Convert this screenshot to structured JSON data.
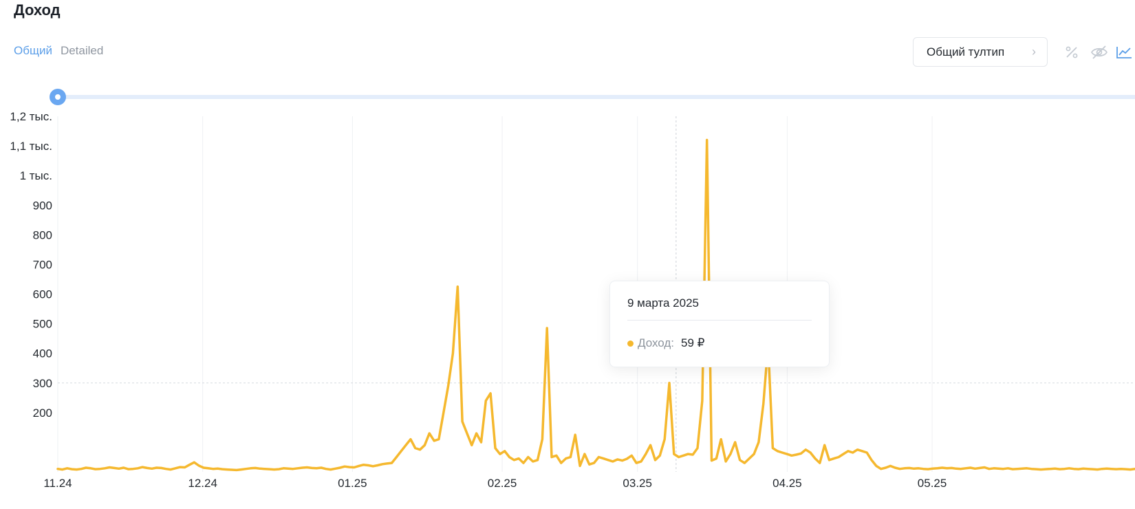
{
  "page": {
    "title": "Доход"
  },
  "tabs": [
    {
      "label": "Общий",
      "active": true
    },
    {
      "label": "Detailed",
      "active": false
    }
  ],
  "toolbar": {
    "tooltip_mode_label": "Общий тултип",
    "icons": [
      "percent-icon",
      "eye-off-icon",
      "line-chart-icon"
    ]
  },
  "colors": {
    "accent": "#5b9ee8",
    "series": "#f5b82e",
    "grid": "#eef0f3"
  },
  "tooltip": {
    "date": "9 марта 2025",
    "label": "Доход:",
    "value": "59 ₽"
  },
  "chart_data": {
    "type": "line",
    "series_name": "Доход",
    "x_tick_labels": [
      "11.24",
      "12.24",
      "01.25",
      "02.25",
      "03.25",
      "04.25",
      "05.25"
    ],
    "y_tick_labels": [
      "200",
      "300",
      "400",
      "500",
      "600",
      "700",
      "800",
      "900",
      "1 тыс.",
      "1,1 тыс.",
      "1,2 тыс."
    ],
    "y_tick_values": [
      200,
      300,
      400,
      500,
      600,
      700,
      800,
      900,
      1000,
      1100,
      1200
    ],
    "ylim": [
      0,
      1200
    ],
    "grid": "vertical",
    "date_range": [
      "2024-11-01",
      "2025-06-12"
    ],
    "hover_date": "2025-03-09",
    "values": [
      10,
      8,
      12,
      9,
      8,
      10,
      14,
      12,
      9,
      10,
      12,
      15,
      13,
      11,
      14,
      9,
      10,
      12,
      16,
      13,
      11,
      14,
      13,
      10,
      8,
      12,
      16,
      15,
      24,
      32,
      21,
      14,
      12,
      10,
      11,
      9,
      8,
      7,
      6,
      8,
      10,
      12,
      13,
      11,
      10,
      9,
      8,
      9,
      12,
      11,
      10,
      12,
      14,
      15,
      13,
      12,
      14,
      10,
      8,
      11,
      14,
      18,
      16,
      15,
      20,
      24,
      22,
      19,
      22,
      26,
      28,
      30,
      50,
      70,
      90,
      110,
      80,
      75,
      90,
      130,
      105,
      110,
      200,
      290,
      400,
      625,
      170,
      130,
      90,
      130,
      100,
      240,
      265,
      80,
      60,
      70,
      50,
      40,
      45,
      30,
      50,
      35,
      40,
      110,
      485,
      50,
      55,
      30,
      45,
      50,
      125,
      20,
      60,
      25,
      30,
      50,
      45,
      40,
      35,
      42,
      38,
      44,
      55,
      30,
      35,
      60,
      90,
      40,
      55,
      110,
      300,
      60,
      50,
      55,
      60,
      58,
      80,
      240,
      1120,
      38,
      45,
      110,
      35,
      60,
      100,
      40,
      30,
      45,
      60,
      100,
      230,
      430,
      80,
      70,
      65,
      60,
      55,
      58,
      62,
      75,
      65,
      45,
      30,
      90,
      40,
      45,
      50,
      60,
      70,
      65,
      75,
      70,
      65,
      40,
      20,
      10,
      14,
      20,
      14,
      10,
      12,
      13,
      11,
      12,
      10,
      9,
      11,
      12,
      14,
      12,
      13,
      11,
      10,
      12,
      14,
      11,
      13,
      15,
      10,
      12,
      11,
      10,
      12,
      9,
      10,
      11,
      12,
      10,
      9,
      8,
      9,
      10,
      11,
      9,
      10,
      12,
      10,
      9,
      11,
      10,
      9,
      8,
      10,
      11,
      10,
      9,
      10,
      9,
      8,
      10
    ]
  }
}
